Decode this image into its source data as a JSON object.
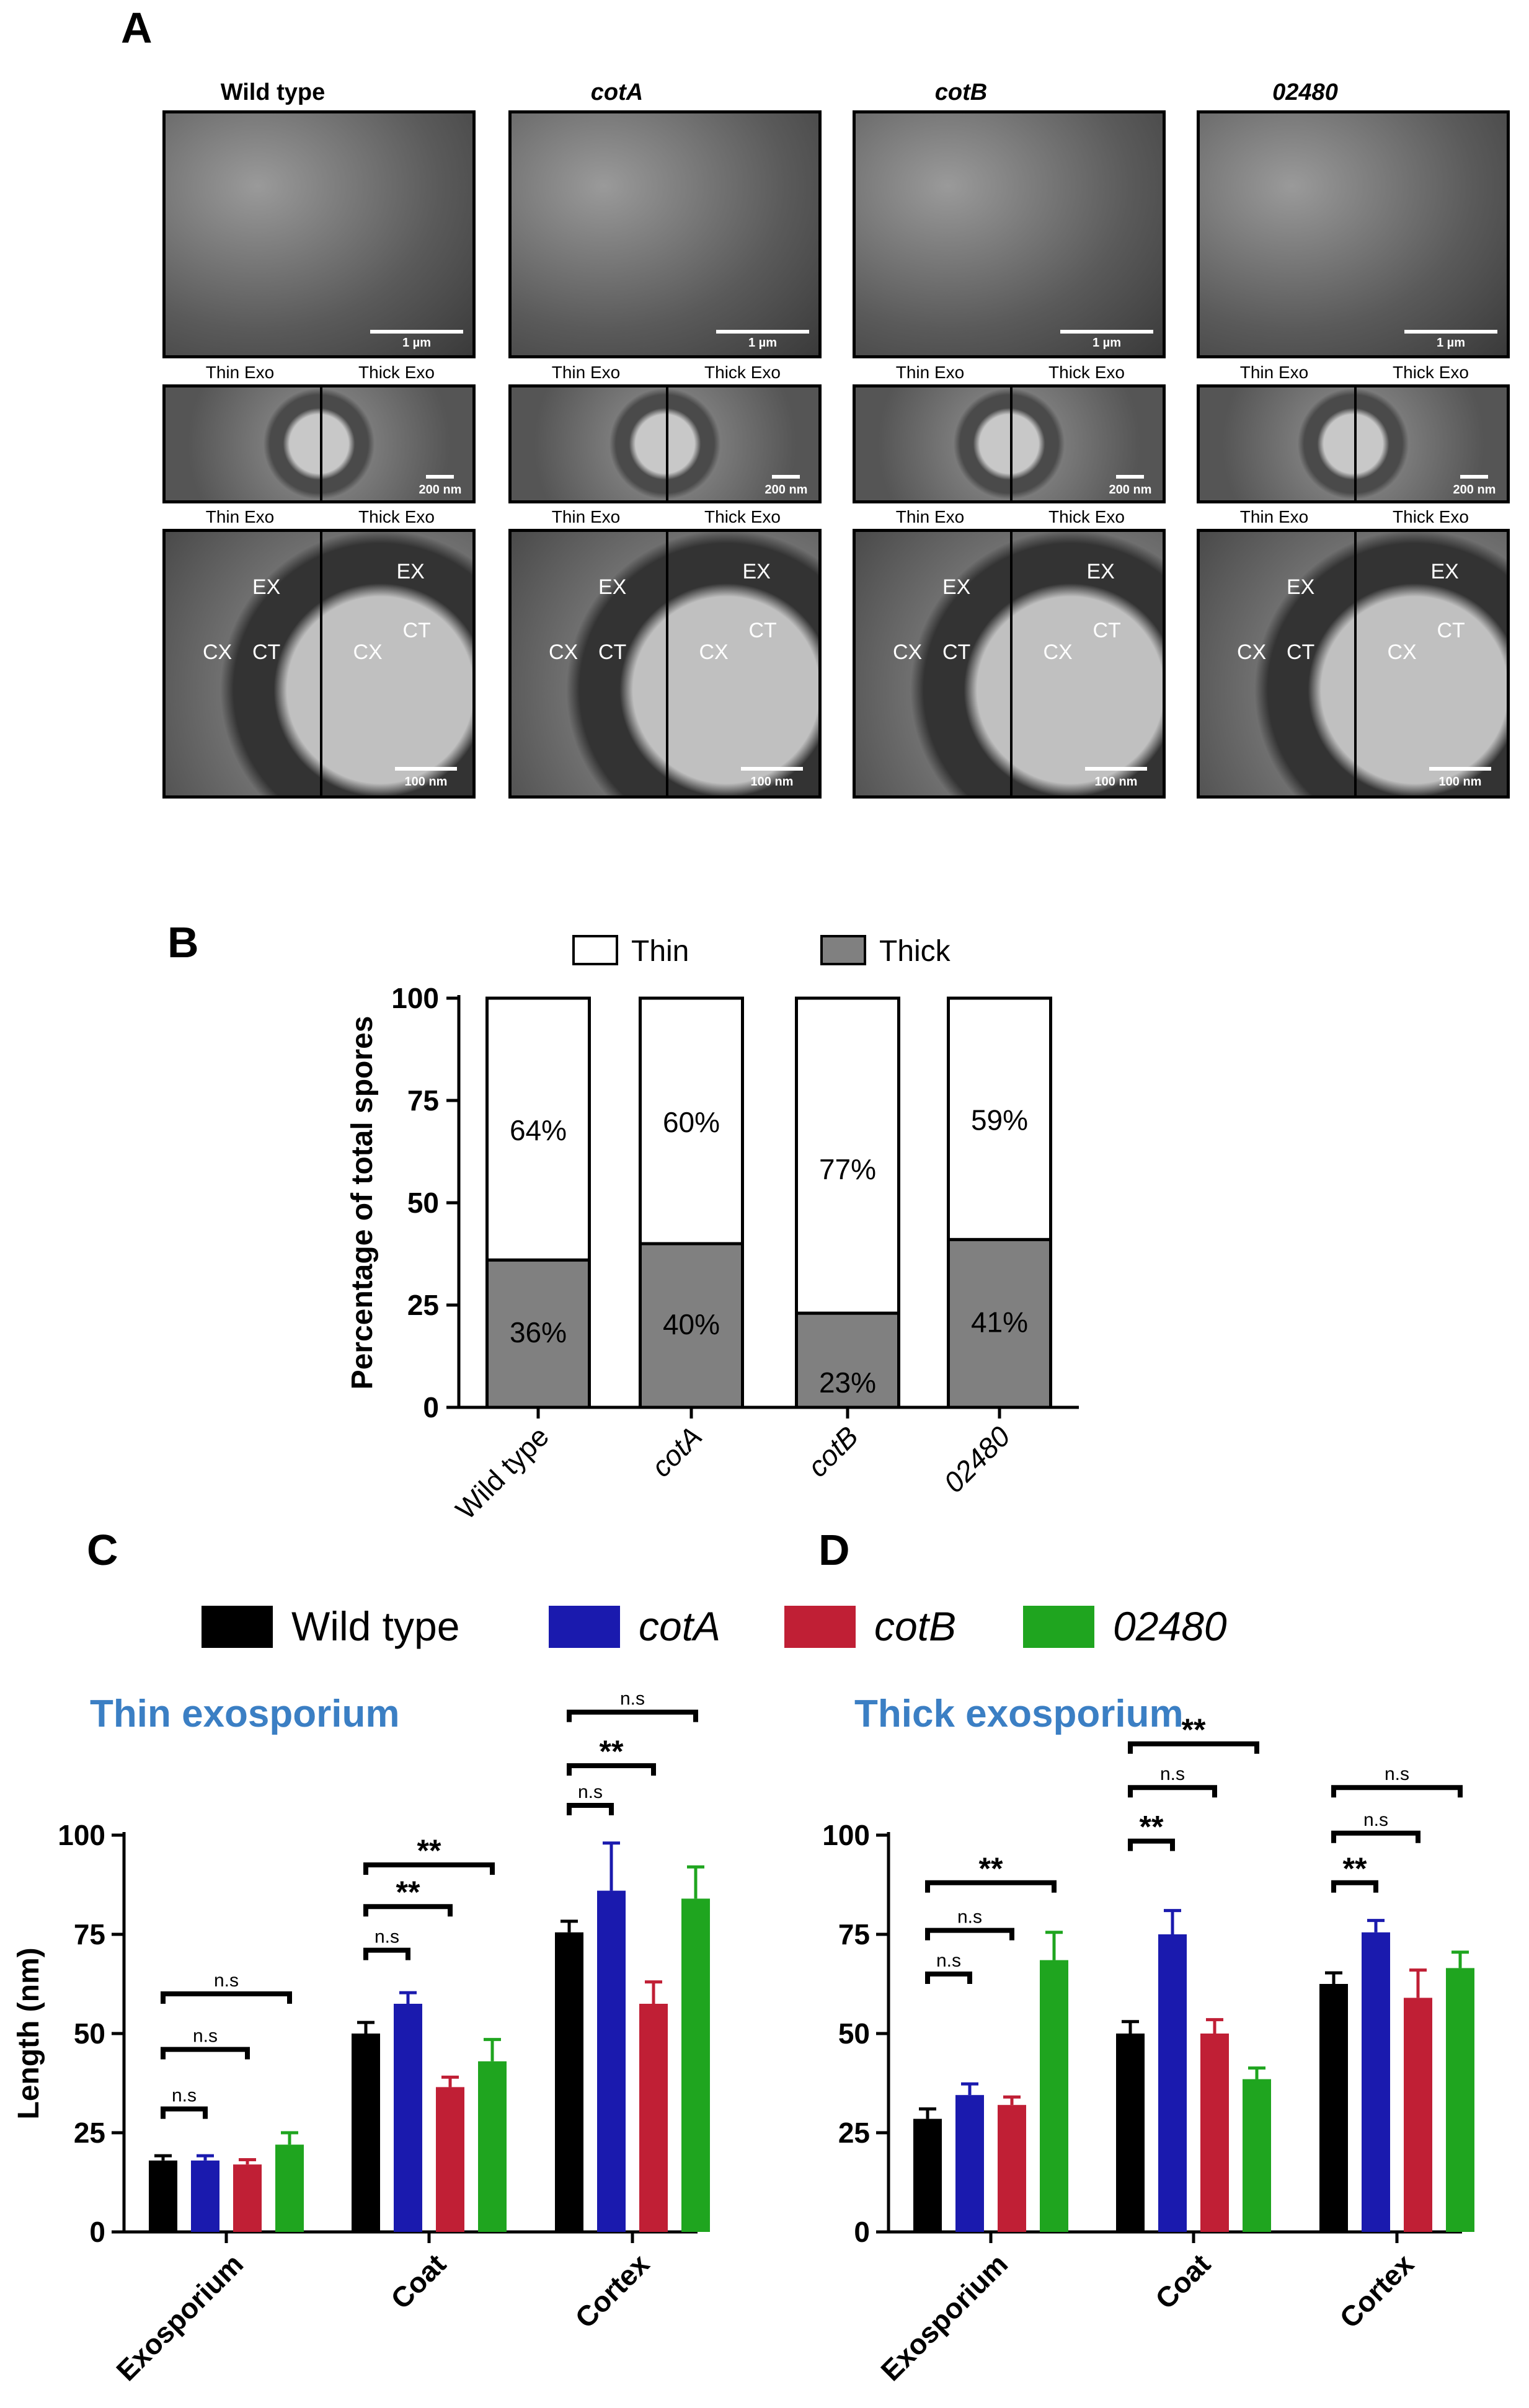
{
  "panels": {
    "a": "A",
    "b": "B",
    "c": "C",
    "d": "D"
  },
  "panel_a": {
    "strains": [
      "Wild type",
      "cotA",
      "cotB",
      "02480"
    ],
    "thin_label": "Thin Exo",
    "thick_label": "Thick Exo",
    "scale_top": "1 µm",
    "scale_mid": "200 nm",
    "scale_bot": "100 nm",
    "annotations": {
      "ex": "EX",
      "cx": "CX",
      "ct": "CT"
    }
  },
  "legend_cd": {
    "entries": [
      {
        "label": "Wild type",
        "color": "#000000"
      },
      {
        "label": "cotA",
        "color": "#1a1aae"
      },
      {
        "label": "cotB",
        "color": "#c01f35"
      },
      {
        "label": "02480",
        "color": "#1fa51f"
      }
    ]
  },
  "chart_data": [
    {
      "id": "B",
      "type": "bar",
      "stacked": true,
      "ylabel": "Percentage of total spores",
      "ylim": [
        0,
        100
      ],
      "yticks": [
        0,
        25,
        50,
        75,
        100
      ],
      "categories": [
        "Wild type",
        "cotA",
        "cotB",
        "02480"
      ],
      "series": [
        {
          "name": "Thick",
          "color": "#808080",
          "values": [
            36,
            40,
            23,
            41
          ],
          "labels": [
            "36%",
            "40%",
            "23%",
            "41%"
          ]
        },
        {
          "name": "Thin",
          "color": "#ffffff",
          "values": [
            64,
            60,
            77,
            59
          ],
          "labels": [
            "64%",
            "60%",
            "77%",
            "59%"
          ]
        }
      ],
      "legend": "top"
    },
    {
      "id": "C",
      "type": "bar",
      "title": "Thin exosporium",
      "ylabel": "Length (nm)",
      "ylim": [
        0,
        100
      ],
      "yticks": [
        0,
        25,
        50,
        75,
        100
      ],
      "categories": [
        "Exosporium",
        "Coat",
        "Cortex"
      ],
      "series": [
        {
          "name": "Wild type",
          "values": [
            18,
            50,
            75.5
          ],
          "err": [
            1.2,
            2.8,
            2.8
          ]
        },
        {
          "name": "cotA",
          "values": [
            18,
            57.5,
            86
          ],
          "err": [
            1.2,
            2.8,
            12
          ]
        },
        {
          "name": "cotB",
          "values": [
            17,
            36.5,
            57.5
          ],
          "err": [
            1.2,
            2.5,
            5.5
          ]
        },
        {
          "name": "02480",
          "values": [
            22,
            43,
            84
          ],
          "err": [
            3,
            5.5,
            8
          ]
        }
      ],
      "significance": [
        {
          "group": 0,
          "to": 1,
          "label": "n.s",
          "y": 31
        },
        {
          "group": 0,
          "to": 2,
          "label": "n.s",
          "y": 46
        },
        {
          "group": 0,
          "to": 3,
          "label": "n.s",
          "y": 60
        },
        {
          "group": 1,
          "to": 1,
          "label": "n.s",
          "y": 71
        },
        {
          "group": 1,
          "to": 2,
          "label": "**",
          "y": 82
        },
        {
          "group": 1,
          "to": 3,
          "label": "**",
          "y": 92.5
        },
        {
          "group": 2,
          "to": 1,
          "label": "n.s",
          "y": 107.5
        },
        {
          "group": 2,
          "to": 2,
          "label": "**",
          "y": 117.5
        },
        {
          "group": 2,
          "to": 3,
          "label": "n.s",
          "y": 131
        }
      ]
    },
    {
      "id": "D",
      "type": "bar",
      "title": "Thick exosporium",
      "ylim": [
        0,
        100
      ],
      "yticks": [
        0,
        25,
        50,
        75,
        100
      ],
      "categories": [
        "Exosporium",
        "Coat",
        "Cortex"
      ],
      "series": [
        {
          "name": "Wild type",
          "values": [
            28.5,
            50,
            62.5
          ],
          "err": [
            2.5,
            3,
            2.8
          ]
        },
        {
          "name": "cotA",
          "values": [
            34.5,
            75,
            75.5
          ],
          "err": [
            2.8,
            6,
            3
          ]
        },
        {
          "name": "cotB",
          "values": [
            32,
            50,
            59
          ],
          "err": [
            2,
            3.5,
            7
          ]
        },
        {
          "name": "02480",
          "values": [
            68.5,
            38.5,
            66.5
          ],
          "err": [
            7,
            2.8,
            4
          ]
        }
      ],
      "significance": [
        {
          "group": 0,
          "to": 1,
          "label": "n.s",
          "y": 65
        },
        {
          "group": 0,
          "to": 2,
          "label": "n.s",
          "y": 76
        },
        {
          "group": 0,
          "to": 3,
          "label": "**",
          "y": 88
        },
        {
          "group": 1,
          "to": 1,
          "label": "**",
          "y": 98.5
        },
        {
          "group": 1,
          "to": 2,
          "label": "n.s",
          "y": 112
        },
        {
          "group": 1,
          "to": 3,
          "label": "**",
          "y": 123
        },
        {
          "group": 2,
          "to": 1,
          "label": "**",
          "y": 88
        },
        {
          "group": 2,
          "to": 2,
          "label": "n.s",
          "y": 100.5
        },
        {
          "group": 2,
          "to": 3,
          "label": "n.s",
          "y": 112
        }
      ]
    }
  ]
}
